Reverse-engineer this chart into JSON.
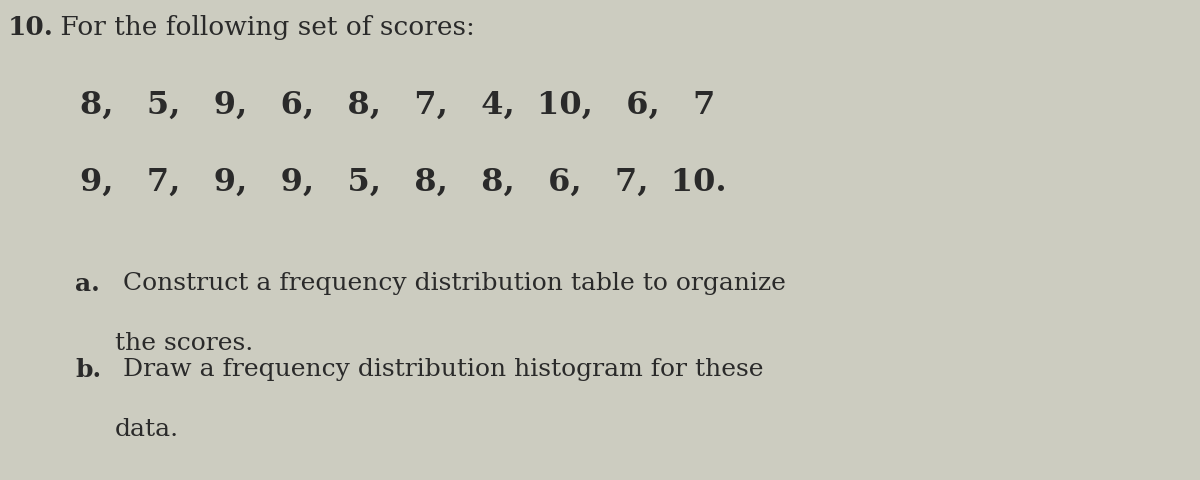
{
  "background_color": "#ccccc0",
  "title_number": "10.",
  "title_rest": " For the following set of scores:",
  "row1": "8,   5,   9,   6,   8,   7,   4,  10,   6,   7",
  "row2": "9,   7,   9,   9,   5,   8,   8,   6,   7,  10.",
  "part_a_label": "a.",
  "part_a_line1": " Construct a frequency distribution table to organize",
  "part_a_line2": "the scores.",
  "part_b_label": "b.",
  "part_b_line1": " Draw a frequency distribution histogram for these",
  "part_b_line2": "data.",
  "title_fontsize": 19,
  "data_fontsize": 23,
  "body_fontsize": 18,
  "text_color": "#2a2a2a",
  "fig_width": 12.0,
  "fig_height": 4.81
}
